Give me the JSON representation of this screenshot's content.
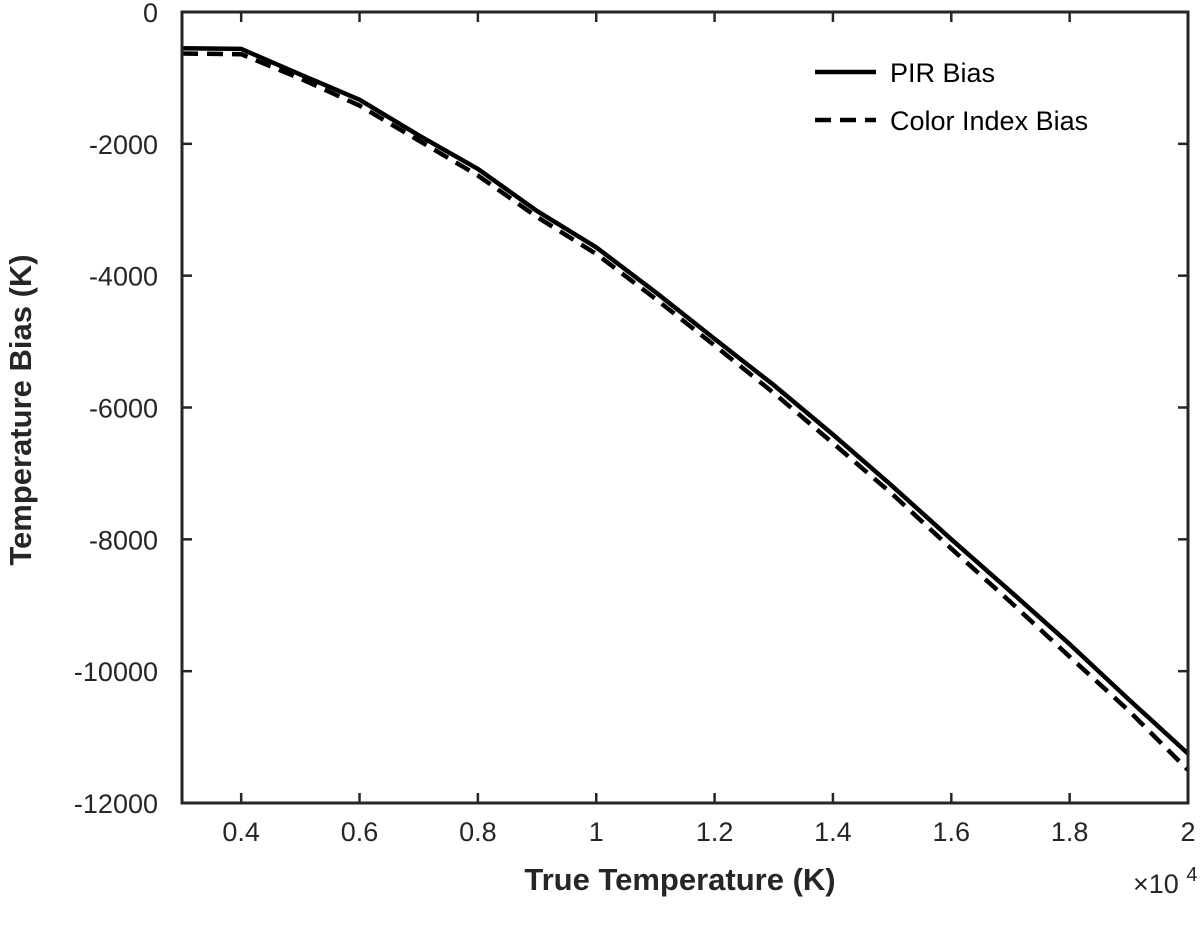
{
  "chart_data": {
    "type": "line",
    "xlabel": "True Temperature (K)",
    "ylabel": "Temperature Bias (K)",
    "x_multiplier_label": "×10",
    "x_multiplier_exponent": "4",
    "xlim": [
      0.3,
      2.0
    ],
    "ylim": [
      -12000,
      0
    ],
    "xticks": [
      0.4,
      0.6,
      0.8,
      1.0,
      1.2,
      1.4,
      1.6,
      1.8,
      2.0
    ],
    "xtick_labels": [
      "0.4",
      "0.6",
      "0.8",
      "1",
      "1.2",
      "1.4",
      "1.6",
      "1.8",
      "2"
    ],
    "yticks": [
      0,
      -2000,
      -4000,
      -6000,
      -8000,
      -10000,
      -12000
    ],
    "ytick_labels": [
      "0",
      "-2000",
      "-4000",
      "-6000",
      "-8000",
      "-10000",
      "-12000"
    ],
    "grid": false,
    "legend_position": "top-right",
    "series": [
      {
        "name": "PIR Bias",
        "style": "solid",
        "color": "#000000",
        "x": [
          0.3,
          0.4,
          0.5,
          0.6,
          0.7,
          0.8,
          0.9,
          1.0,
          1.1,
          1.2,
          1.3,
          1.4,
          1.5,
          1.6,
          1.7,
          1.8,
          1.9,
          2.0
        ],
        "y": [
          -550,
          -560,
          -950,
          -1330,
          -1870,
          -2380,
          -3020,
          -3570,
          -4250,
          -4960,
          -5660,
          -6410,
          -7190,
          -8000,
          -8790,
          -9590,
          -10430,
          -11250
        ]
      },
      {
        "name": "Color Index Bias",
        "style": "dashed",
        "color": "#000000",
        "x": [
          0.3,
          0.4,
          0.5,
          0.6,
          0.7,
          0.8,
          0.9,
          1.0,
          1.1,
          1.2,
          1.3,
          1.4,
          1.5,
          1.6,
          1.7,
          1.8,
          1.9,
          2.0
        ],
        "y": [
          -630,
          -640,
          -1010,
          -1420,
          -1950,
          -2480,
          -3110,
          -3670,
          -4350,
          -5060,
          -5780,
          -6540,
          -7310,
          -8140,
          -8950,
          -9780,
          -10600,
          -11500
        ]
      }
    ]
  }
}
